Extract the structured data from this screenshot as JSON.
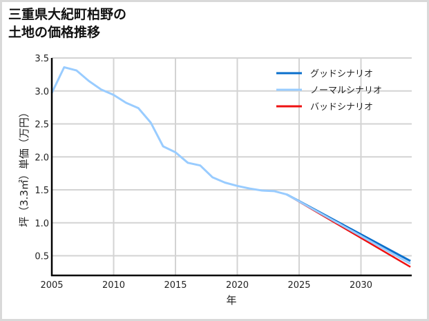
{
  "title_line1": "三重県大紀町柏野の",
  "title_line2": "土地の価格推移",
  "chart_data": {
    "type": "line",
    "title": "三重県大紀町柏野の土地の価格推移",
    "xlabel": "年",
    "ylabel": "坪（3.3㎡）単価（万円）",
    "xlim": [
      2005,
      2034
    ],
    "ylim": [
      0.2,
      3.5
    ],
    "xticks": [
      2005,
      2010,
      2015,
      2020,
      2025,
      2030
    ],
    "yticks": [
      0.5,
      1.0,
      1.5,
      2.0,
      2.5,
      3.0,
      3.5
    ],
    "ytick_labels": [
      "0.5",
      "1.0",
      "1.5",
      "2.0",
      "2.5",
      "3.0",
      "3.5"
    ],
    "grid": true,
    "legend_position": "upper right",
    "series": [
      {
        "name": "グッドシナリオ",
        "color": "#0a6fcc",
        "x": [
          2024,
          2034
        ],
        "values": [
          1.43,
          0.42
        ]
      },
      {
        "name": "ノーマルシナリオ",
        "color": "#99ccff",
        "x": [
          2005,
          2006,
          2007,
          2008,
          2009,
          2010,
          2011,
          2012,
          2013,
          2014,
          2015,
          2016,
          2017,
          2018,
          2019,
          2020,
          2021,
          2022,
          2023,
          2024,
          2034
        ],
        "values": [
          2.97,
          3.36,
          3.31,
          3.15,
          3.02,
          2.94,
          2.82,
          2.74,
          2.52,
          2.16,
          2.07,
          1.91,
          1.87,
          1.69,
          1.61,
          1.56,
          1.52,
          1.49,
          1.48,
          1.43,
          0.38
        ]
      },
      {
        "name": "バッドシナリオ",
        "color": "#ee1111",
        "x": [
          2024,
          2034
        ],
        "values": [
          1.43,
          0.33
        ]
      }
    ]
  }
}
